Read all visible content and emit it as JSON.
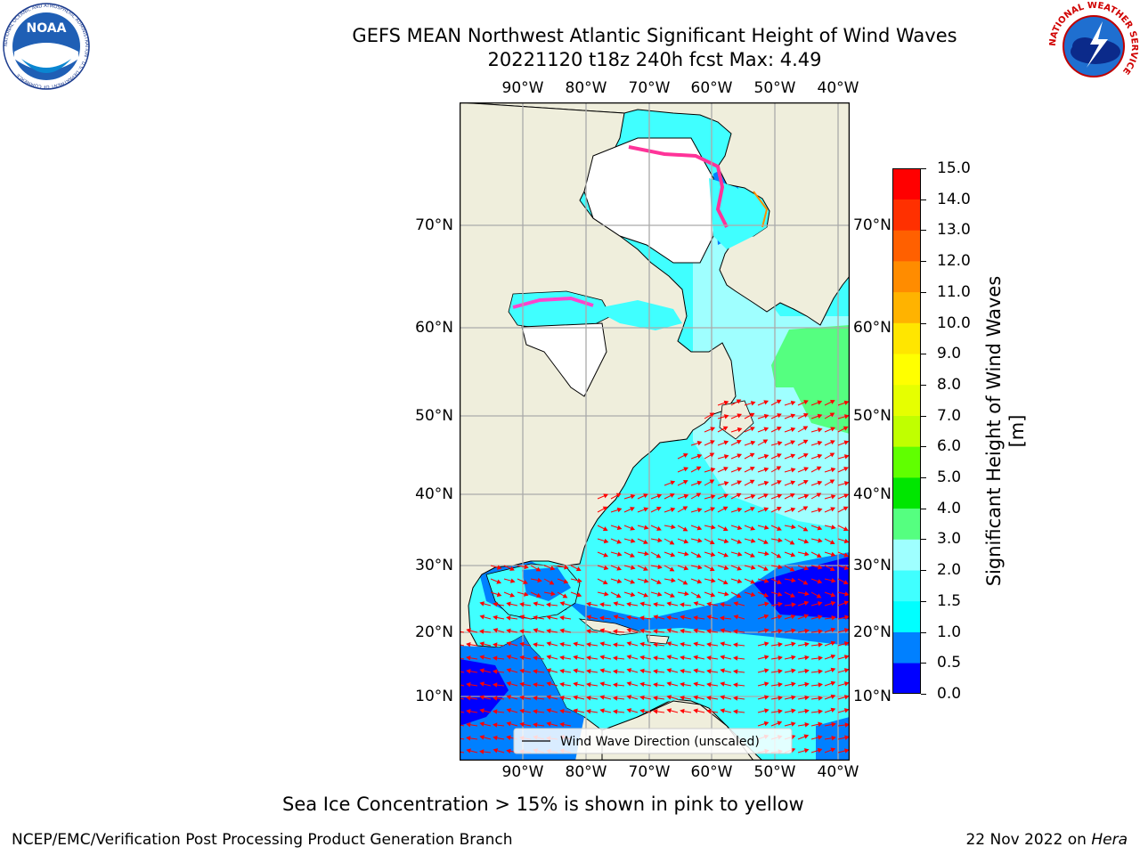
{
  "header": {
    "title_line1": "GEFS MEAN Northwest Atlantic Significant Height of Wind Waves",
    "title_line2": "20221120 t18z 240h fcst   Max: 4.49"
  },
  "logos": {
    "noaa": "NOAA",
    "noaa_ring": "NATIONAL OCEANIC AND ATMOSPHERIC ADMINISTRATION · U.S. DEPARTMENT OF COMMERCE",
    "nws_ring": "NATIONAL WEATHER SERVICE"
  },
  "map": {
    "lon_ticks": [
      "90°W",
      "80°W",
      "70°W",
      "60°W",
      "50°W",
      "40°W"
    ],
    "lat_ticks": [
      "70°N",
      "60°N",
      "50°N",
      "40°N",
      "30°N",
      "20°N",
      "10°N"
    ],
    "legend_label": "Wind Wave Direction (unscaled)",
    "arrow_color": "#ff0000",
    "land_color": "#efeedc",
    "ice_color": "#ffffff"
  },
  "colorbar": {
    "label": "Significant Height of Wind Waves [m]",
    "ticks": [
      "0.0",
      "0.5",
      "1.0",
      "1.5",
      "2.0",
      "3.0",
      "4.0",
      "5.0",
      "6.0",
      "7.0",
      "8.0",
      "9.0",
      "10.0",
      "11.0",
      "12.0",
      "13.0",
      "14.0",
      "15.0"
    ],
    "colors": [
      "#0000ff",
      "#0080ff",
      "#00ffff",
      "#40ffff",
      "#9fffff",
      "#55ff80",
      "#00e600",
      "#60ff00",
      "#c0ff00",
      "#e6ff00",
      "#ffff00",
      "#ffe600",
      "#ffb300",
      "#ff8c00",
      "#ff6000",
      "#ff3000",
      "#ff0000"
    ]
  },
  "notes": {
    "ice": "Sea Ice Concentration > 15% is shown in pink to yellow",
    "footer_left": "NCEP/EMC/Verification Post Processing Product Generation Branch",
    "footer_date": "22 Nov 2022 on ",
    "footer_host": "Hera"
  }
}
